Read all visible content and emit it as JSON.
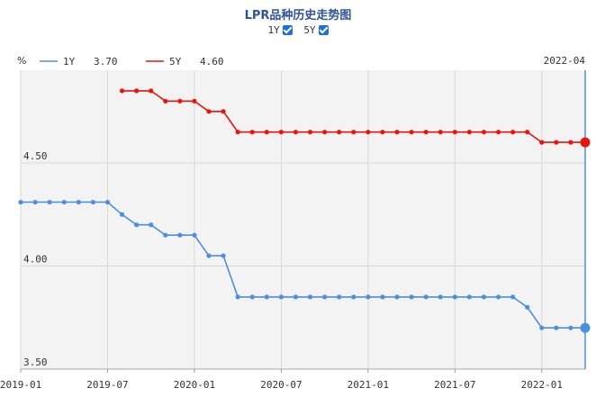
{
  "title": "LPR品种历史走势图",
  "toggles": [
    {
      "label": "1Y",
      "checked": true
    },
    {
      "label": "5Y",
      "checked": true
    }
  ],
  "colors": {
    "s1y": "#4a90e2",
    "s5y": "#e8150c",
    "grid": "#d8d8d8",
    "bg": "#f3f3f3"
  },
  "chart_data": {
    "type": "line",
    "unit_label": "%",
    "current_period": "2022-04",
    "ylim": [
      3.5,
      4.95
    ],
    "yticks": [
      {
        "value": 3.5,
        "label": "3.50"
      },
      {
        "value": 4.0,
        "label": "4.00"
      },
      {
        "value": 4.5,
        "label": "4.50"
      }
    ],
    "xticks": [
      {
        "index": 0,
        "label": "2019-01"
      },
      {
        "index": 6,
        "label": "2019-07"
      },
      {
        "index": 12,
        "label": "2020-01"
      },
      {
        "index": 18,
        "label": "2020-07"
      },
      {
        "index": 24,
        "label": "2021-01"
      },
      {
        "index": 30,
        "label": "2021-07"
      },
      {
        "index": 36,
        "label": "2022-01"
      }
    ],
    "x_count": 40,
    "series": [
      {
        "name": "1Y",
        "latest": "3.70",
        "start_index": 0,
        "values": [
          4.31,
          4.31,
          4.31,
          4.31,
          4.31,
          4.31,
          4.31,
          4.25,
          4.2,
          4.2,
          4.15,
          4.15,
          4.15,
          4.05,
          4.05,
          3.85,
          3.85,
          3.85,
          3.85,
          3.85,
          3.85,
          3.85,
          3.85,
          3.85,
          3.85,
          3.85,
          3.85,
          3.85,
          3.85,
          3.85,
          3.85,
          3.85,
          3.85,
          3.85,
          3.85,
          3.8,
          3.7,
          3.7,
          3.7,
          3.7
        ]
      },
      {
        "name": "5Y",
        "latest": "4.60",
        "start_index": 7,
        "values": [
          4.85,
          4.85,
          4.85,
          4.8,
          4.8,
          4.8,
          4.75,
          4.75,
          4.65,
          4.65,
          4.65,
          4.65,
          4.65,
          4.65,
          4.65,
          4.65,
          4.65,
          4.65,
          4.65,
          4.65,
          4.65,
          4.65,
          4.65,
          4.65,
          4.65,
          4.65,
          4.65,
          4.65,
          4.65,
          4.6,
          4.6,
          4.6,
          4.6
        ]
      }
    ]
  }
}
